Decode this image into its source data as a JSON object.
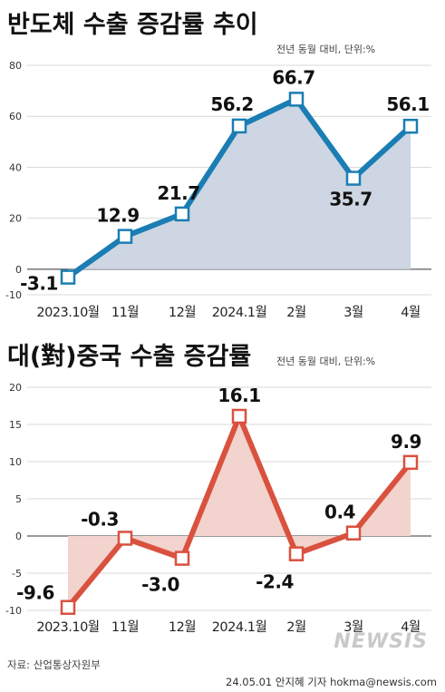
{
  "chart_data": [
    {
      "type": "line",
      "title": "반도체 수출 증감률 추이",
      "unit_note": "전년 동월 대비, 단위:%",
      "categories": [
        "2023.10월",
        "11월",
        "12월",
        "2024.1월",
        "2월",
        "3월",
        "4월"
      ],
      "values": [
        -3.1,
        12.9,
        21.7,
        56.2,
        66.7,
        35.7,
        56.1
      ],
      "data_labels": [
        "-3.1",
        "12.9",
        "21.7",
        "56.2",
        "66.7",
        "35.7",
        "56.1"
      ],
      "yticks": [
        80,
        60,
        40,
        20,
        0,
        -10
      ],
      "ylim": [
        -10,
        80
      ],
      "grid": true,
      "line_color": "#1a7db3",
      "fill_color": "#cdd6e2"
    },
    {
      "type": "line",
      "title": "대(對)중국 수출 증감률",
      "unit_note": "전년 동월 대비, 단위:%",
      "categories": [
        "2023.10월",
        "11월",
        "12월",
        "2024.1월",
        "2월",
        "3월",
        "4월"
      ],
      "values": [
        -9.6,
        -0.3,
        -3.0,
        16.1,
        -2.4,
        0.4,
        9.9
      ],
      "data_labels": [
        "-9.6",
        "-0.3",
        "-3.0",
        "16.1",
        "-2.4",
        "0.4",
        "9.9"
      ],
      "yticks": [
        20,
        15,
        10,
        5,
        0,
        -5,
        -10
      ],
      "ylim": [
        -10,
        20
      ],
      "grid": true,
      "line_color": "#d9513f",
      "fill_color": "#f2d3cd"
    }
  ],
  "footer": {
    "source": "자료: 산업통상자원부",
    "credit": "24.05.01  안지혜  기자  hokma@newsis.com",
    "logo": "NEWSIS"
  }
}
